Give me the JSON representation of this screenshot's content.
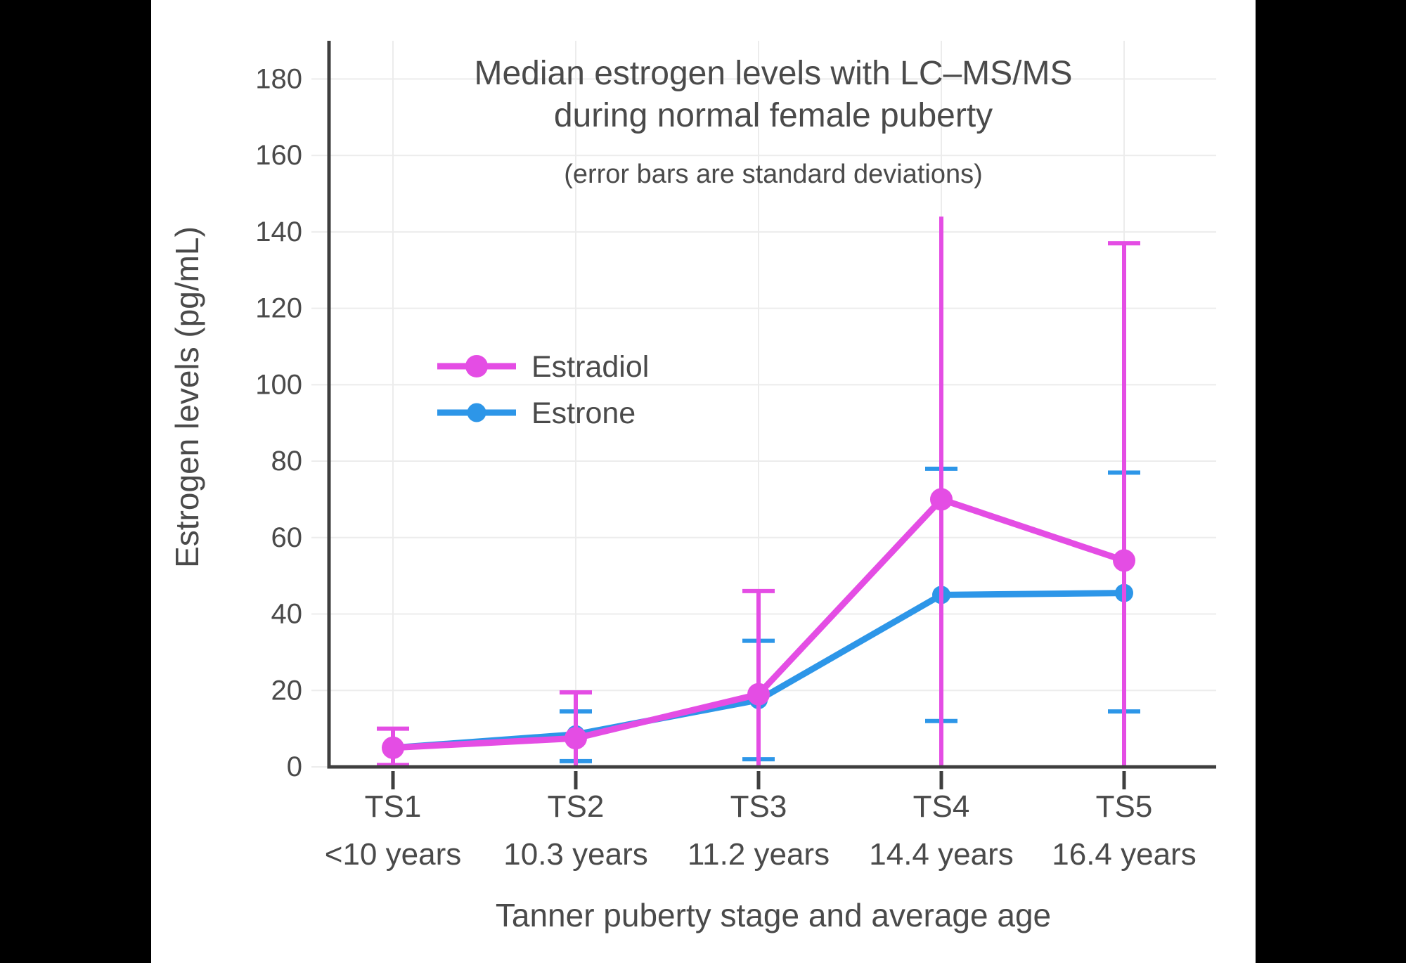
{
  "frame": {
    "background_color": "#000000",
    "canvas_color": "#ffffff"
  },
  "chart_data": {
    "type": "line",
    "title_line1": "Median estrogen levels with LC–MS/MS",
    "title_line2": "during normal female puberty",
    "subtitle": "(error bars are standard deviations)",
    "xlabel": "Tanner puberty stage and average age",
    "ylabel": "Estrogen levels (pg/mL)",
    "categories": [
      "TS1",
      "TS2",
      "TS3",
      "TS4",
      "TS5"
    ],
    "category_ages": [
      "<10 years",
      "10.3 years",
      "11.2 years",
      "14.4 years",
      "16.4 years"
    ],
    "yticks": [
      0,
      20,
      40,
      60,
      80,
      100,
      120,
      140,
      160,
      180
    ],
    "ylim": [
      0,
      190
    ],
    "grid": true,
    "legend_position": "inside-upper-left",
    "axis_color": "#3F3F3F",
    "grid_color": "#ECECEC",
    "text_color": "#4A4A4A",
    "series": [
      {
        "name": "Estradiol",
        "color": "#E44DE4",
        "marker_radius": 16,
        "values": [
          5,
          7.5,
          19,
          70,
          54
        ],
        "error_high": [
          10,
          19.5,
          46,
          144,
          137
        ],
        "error_low": [
          0.5,
          0,
          0,
          0,
          0
        ],
        "cap_high": [
          true,
          true,
          true,
          false,
          true
        ],
        "cap_low": [
          true,
          false,
          false,
          false,
          false
        ]
      },
      {
        "name": "Estrone",
        "color": "#2D96E8",
        "marker_radius": 13,
        "values": [
          5,
          8.5,
          17.5,
          45,
          45.5
        ],
        "error_high": [
          null,
          14.5,
          33,
          78,
          77
        ],
        "error_low": [
          null,
          1.5,
          2,
          12,
          14.5
        ],
        "cap_high": [
          false,
          true,
          true,
          true,
          true
        ],
        "cap_low": [
          false,
          true,
          true,
          true,
          true
        ]
      }
    ]
  }
}
